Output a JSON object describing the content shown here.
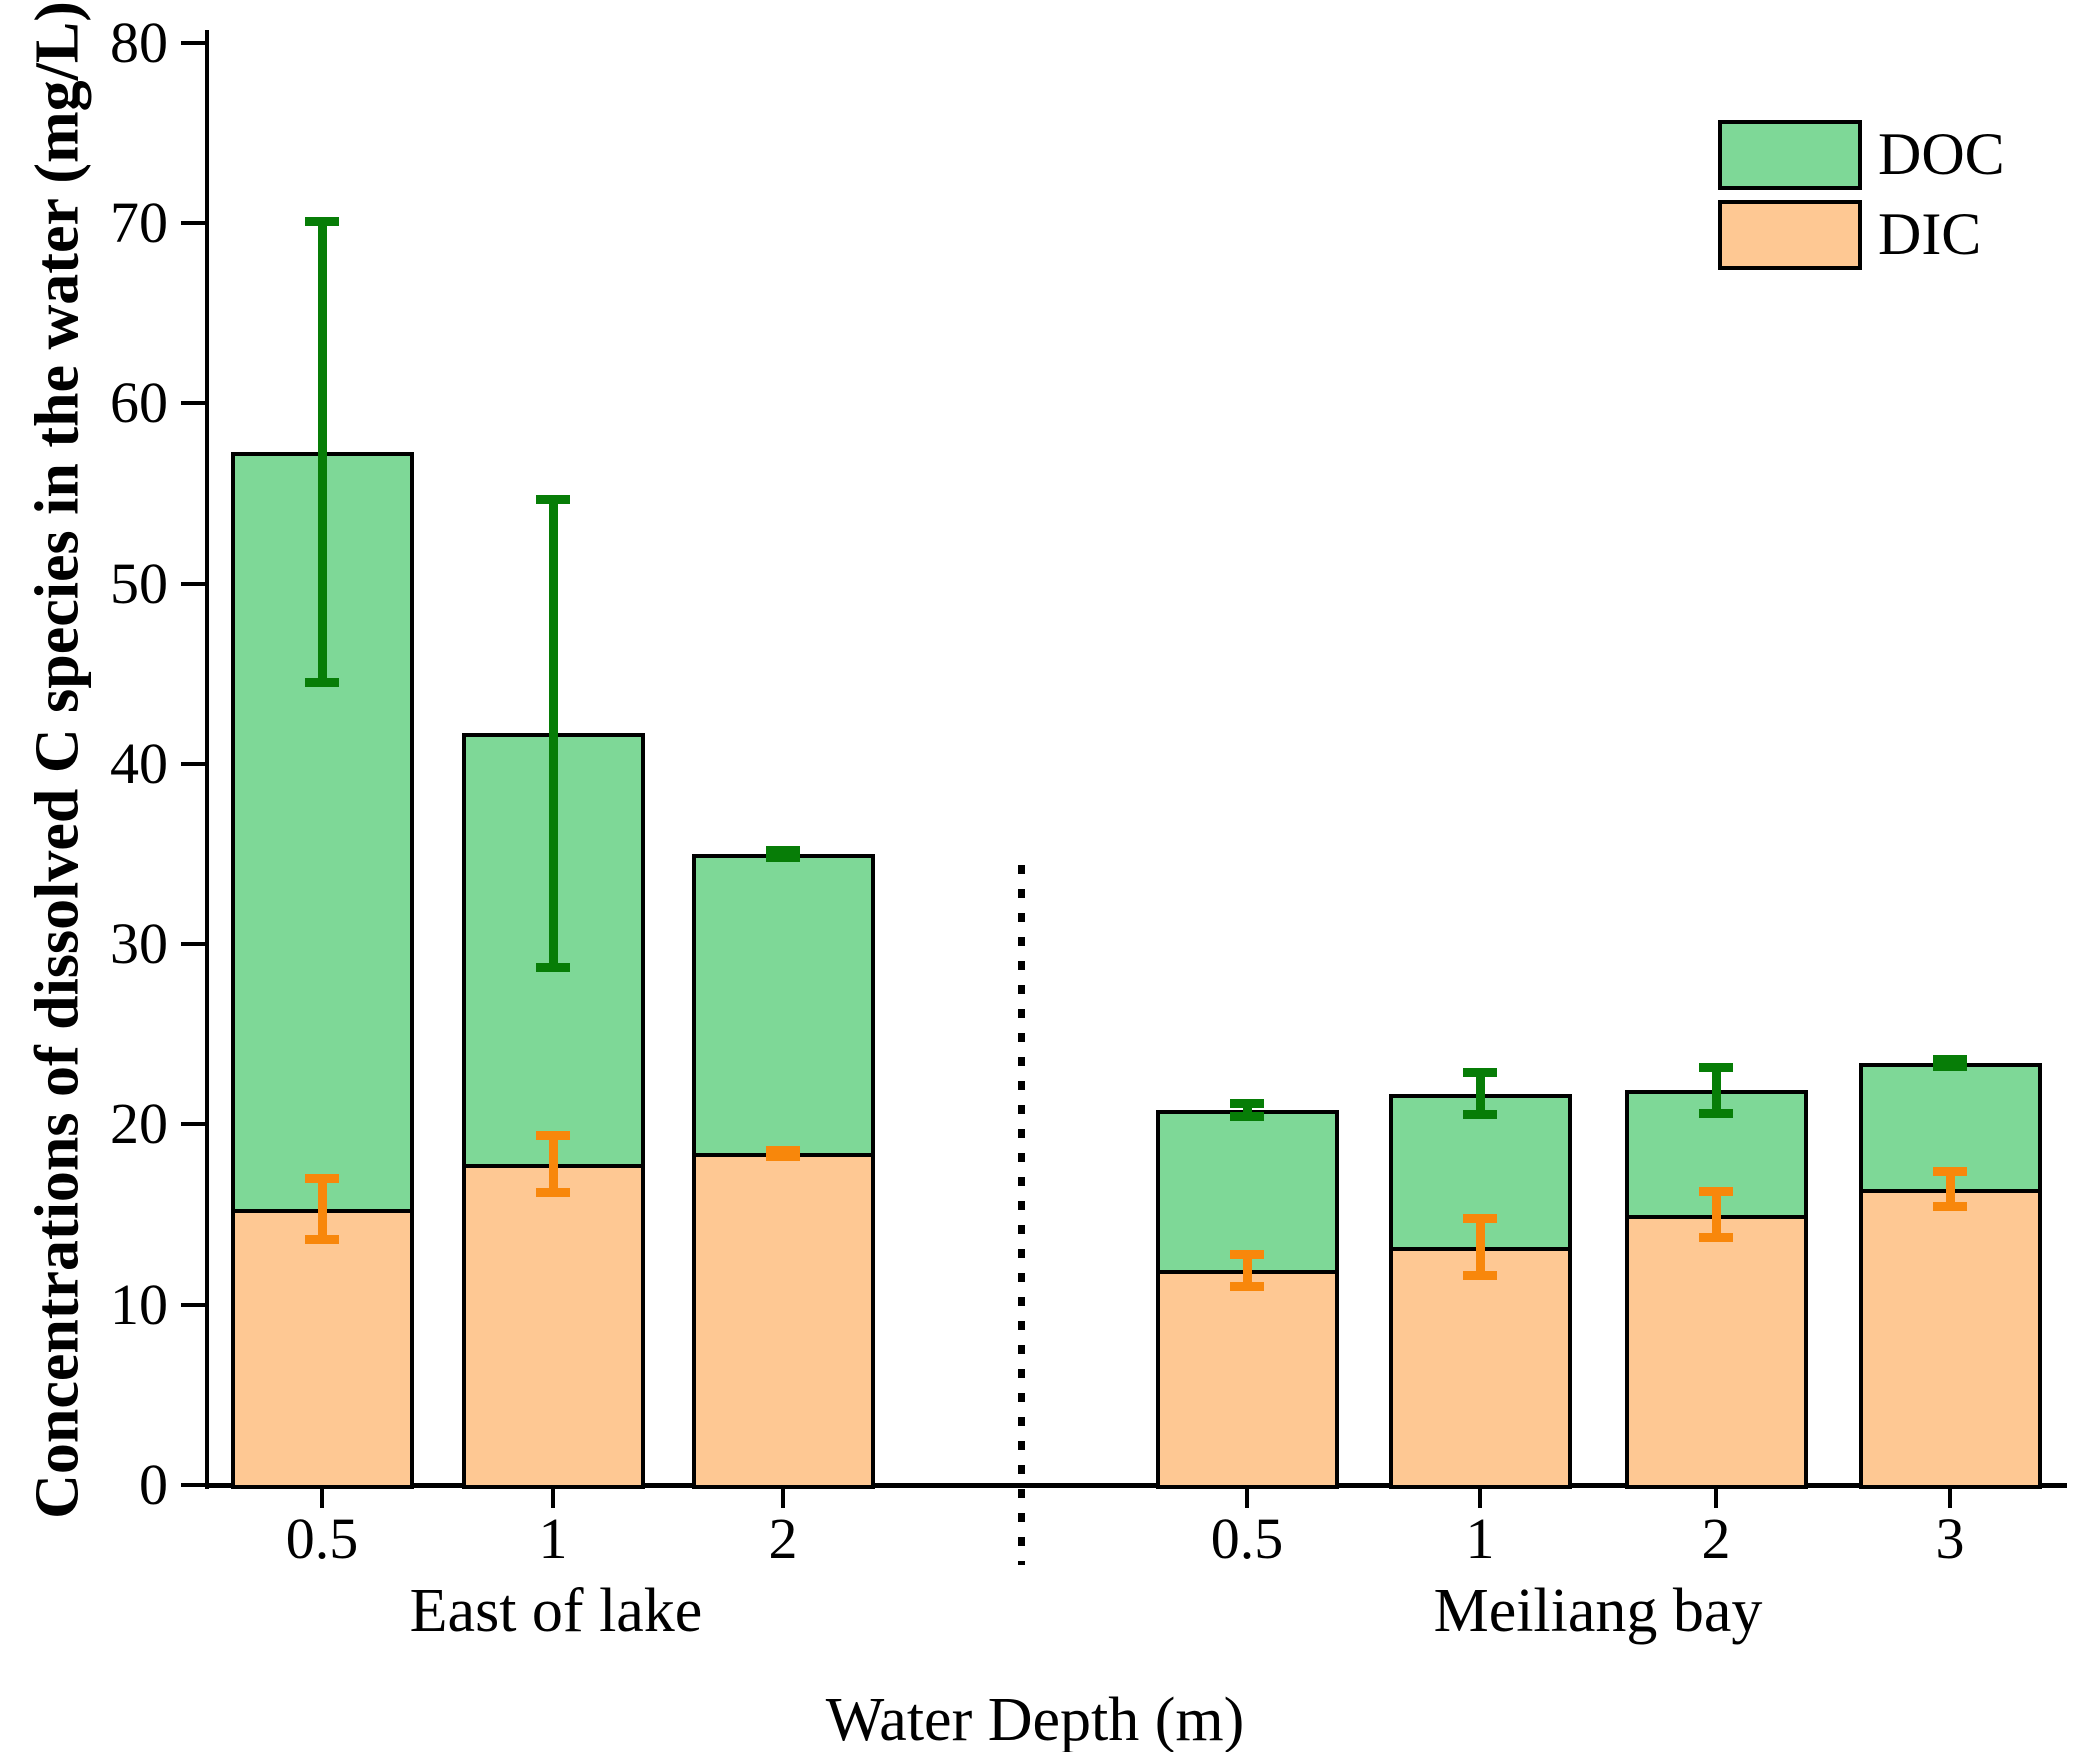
{
  "chart_data": {
    "type": "bar",
    "stacked": true,
    "title": "",
    "ylabel": "Concentrations of dissolved C species in the water (mg/L)",
    "xlabel": "Water Depth (m)",
    "ylim": [
      0,
      80
    ],
    "yticks": [
      0,
      10,
      20,
      30,
      40,
      50,
      60,
      70,
      80
    ],
    "grid": false,
    "legend_position": "top-right",
    "legend": [
      {
        "name": "DOC",
        "color": "#7ed897"
      },
      {
        "name": "DIC",
        "color": "#fec893"
      }
    ],
    "series_note": "stacked bars: DIC bottom (orange), DOC top (green); error bars on DIC boundary (orange) and on stack total (dark green)",
    "groups": [
      {
        "label": "East of lake",
        "bars": [
          {
            "depth": "0.5",
            "dic": 15.3,
            "dic_err": 1.7,
            "doc": 42.0,
            "total": 57.3,
            "total_err": 12.8
          },
          {
            "depth": "1",
            "dic": 17.8,
            "dic_err": 1.6,
            "doc": 23.9,
            "total": 41.7,
            "total_err": 13.0
          },
          {
            "depth": "2",
            "dic": 18.4,
            "dic_err": 0.2,
            "doc": 16.6,
            "total": 35.0,
            "total_err": 0.2
          }
        ]
      },
      {
        "label": "Meiliang bay",
        "bars": [
          {
            "depth": "0.5",
            "dic": 11.9,
            "dic_err": 0.9,
            "doc": 8.9,
            "total": 20.8,
            "total_err": 0.4
          },
          {
            "depth": "1",
            "dic": 13.2,
            "dic_err": 1.6,
            "doc": 8.5,
            "total": 21.7,
            "total_err": 1.2
          },
          {
            "depth": "2",
            "dic": 15.0,
            "dic_err": 1.3,
            "doc": 6.9,
            "total": 21.9,
            "total_err": 1.3
          },
          {
            "depth": "3",
            "dic": 16.4,
            "dic_err": 1.0,
            "doc": 7.0,
            "total": 23.4,
            "total_err": 0.2
          }
        ]
      }
    ],
    "colors": {
      "doc_fill": "#7ed897",
      "dic_fill": "#fec893",
      "doc_error": "#077d07",
      "dic_error": "#f8870b",
      "outline": "#000000"
    }
  }
}
